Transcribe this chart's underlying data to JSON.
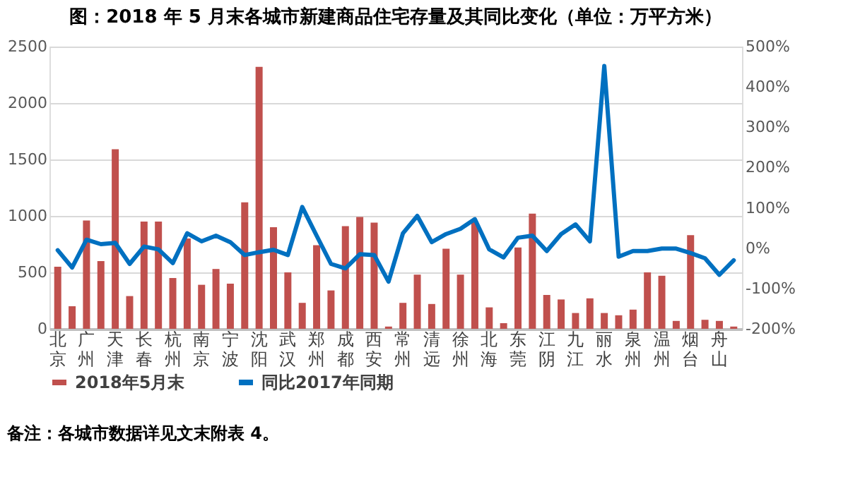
{
  "chart_data": {
    "type": "bar",
    "title": "图：2018 年 5 月末各城市新建商品住宅存量及其同比变化（单位：万平方米）",
    "categories": [
      "北京",
      null,
      "广州",
      null,
      "天津",
      null,
      "长春",
      null,
      "杭州",
      null,
      "南京",
      null,
      "宁波",
      null,
      "沈阳",
      null,
      "武汉",
      null,
      "郑州",
      null,
      "成都",
      null,
      "西安",
      null,
      "常州",
      null,
      "清远",
      null,
      "徐州",
      null,
      "北海",
      null,
      "东莞",
      null,
      "江阴",
      null,
      "九江",
      null,
      "丽水",
      null,
      "泉州",
      null,
      "温州",
      null,
      "烟台",
      null,
      "舟山",
      null
    ],
    "series": [
      {
        "name": "2018年5月末",
        "color": "#c0504d",
        "values": [
          550,
          200,
          960,
          600,
          1590,
          290,
          950,
          950,
          450,
          800,
          390,
          530,
          400,
          1120,
          2320,
          900,
          500,
          230,
          740,
          340,
          910,
          990,
          940,
          20,
          230,
          480,
          220,
          710,
          480,
          950,
          190,
          50,
          720,
          1020,
          300,
          260,
          140,
          270,
          140,
          120,
          170,
          500,
          470,
          70,
          830,
          80,
          70,
          20
        ]
      },
      {
        "name": "同比2017年同期",
        "type": "line",
        "axis": "y2",
        "color": "#0070c0",
        "values": [
          -5,
          -48,
          21,
          10,
          13,
          -39,
          4,
          -3,
          -37,
          37,
          17,
          31,
          15,
          -17,
          -10,
          -4,
          -17,
          102,
          31,
          -39,
          -50,
          -15,
          -17,
          -83,
          37,
          80,
          15,
          35,
          48,
          72,
          -3,
          -23,
          26,
          31,
          -7,
          35,
          59,
          17,
          452,
          -21,
          -7,
          -7,
          -1,
          -1,
          -12,
          -25,
          -66,
          -30
        ]
      }
    ],
    "ylim": [
      0,
      2500
    ],
    "yticks": [
      0,
      500,
      1000,
      1500,
      2000,
      2500
    ],
    "y2lim": [
      -200,
      500
    ],
    "y2ticks": [
      {
        "value": -200,
        "label": "-200%"
      },
      {
        "value": -100,
        "label": "-100%"
      },
      {
        "value": 0,
        "label": "0%"
      },
      {
        "value": 100,
        "label": "100%"
      },
      {
        "value": 200,
        "label": "200%"
      },
      {
        "value": 300,
        "label": "300%"
      },
      {
        "value": 400,
        "label": "400%"
      },
      {
        "value": 500,
        "label": "500%"
      }
    ],
    "grid": "y",
    "legend": "bottom",
    "annotations": [
      "备注：各城市数据详见文末附表 4。"
    ]
  }
}
